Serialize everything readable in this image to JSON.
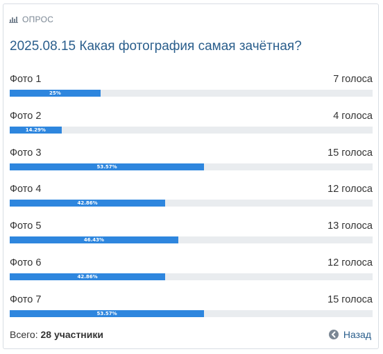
{
  "header": {
    "label": "ОПРОС",
    "icon": "bar-chart-icon"
  },
  "title": "2025.08.15 Какая фотография самая зачётная?",
  "options": [
    {
      "label": "Фото 1",
      "votes": "7 голоса",
      "percent_text": "25%",
      "percent": 25
    },
    {
      "label": "Фото 2",
      "votes": "4 голоса",
      "percent_text": "14.29%",
      "percent": 14.29
    },
    {
      "label": "Фото 3",
      "votes": "15 голоса",
      "percent_text": "53.57%",
      "percent": 53.57
    },
    {
      "label": "Фото 4",
      "votes": "12 голоса",
      "percent_text": "42.86%",
      "percent": 42.86
    },
    {
      "label": "Фото 5",
      "votes": "13 голоса",
      "percent_text": "46.43%",
      "percent": 46.43
    },
    {
      "label": "Фото 6",
      "votes": "12 голоса",
      "percent_text": "42.86%",
      "percent": 42.86
    },
    {
      "label": "Фото 7",
      "votes": "15 голоса",
      "percent_text": "53.57%",
      "percent": 53.57
    }
  ],
  "footer": {
    "total_label": "Всего:",
    "total_value": "28 участники",
    "back_label": "Назад",
    "back_icon": "arrow-left-circle-icon"
  },
  "colors": {
    "accent": "#2e86de",
    "title": "#2a5e8c",
    "track": "#e9ecef"
  }
}
